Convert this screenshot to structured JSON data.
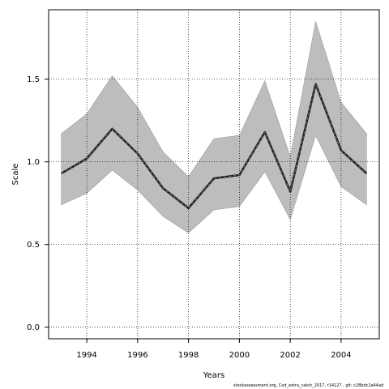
{
  "chart_data": {
    "type": "line",
    "xlabel": "Years",
    "ylabel": "Scale",
    "xlim": [
      1992.5,
      2005.5
    ],
    "ylim": [
      -0.07,
      1.92
    ],
    "x_ticks": [
      1994,
      1996,
      1998,
      2000,
      2002,
      2004
    ],
    "y_ticks": [
      0.0,
      0.5,
      1.0,
      1.5
    ],
    "y_tick_labels": [
      "0.0",
      "0.5",
      "1.0",
      "1.5"
    ],
    "grid": "dotted",
    "x": [
      1993,
      1994,
      1995,
      1996,
      1997,
      1998,
      1999,
      2000,
      2001,
      2002,
      2003,
      2004,
      2005
    ],
    "series": [
      {
        "values": [
          0.93,
          1.02,
          1.2,
          1.05,
          0.84,
          0.72,
          0.9,
          0.92,
          1.18,
          0.82,
          1.47,
          1.07,
          0.93
        ],
        "lower": [
          0.74,
          0.81,
          0.95,
          0.83,
          0.67,
          0.57,
          0.71,
          0.73,
          0.94,
          0.65,
          1.16,
          0.85,
          0.74
        ],
        "upper": [
          1.17,
          1.29,
          1.52,
          1.33,
          1.06,
          0.91,
          1.14,
          1.16,
          1.49,
          1.03,
          1.85,
          1.36,
          1.17
        ]
      }
    ],
    "colors": {
      "band": "#bdbdbd",
      "band_edge": "#9a9a9a",
      "line": "#222222",
      "line_dash": "#777777"
    }
  },
  "footer": "stockassessment.org, Cod_extra_catch_2017, r14127 , git: c28bdc2a44ad"
}
